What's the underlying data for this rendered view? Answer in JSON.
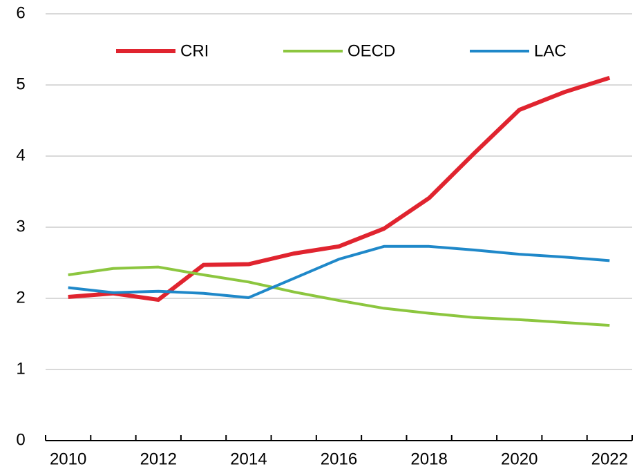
{
  "chart_data": {
    "type": "line",
    "categories": [
      "2010",
      null,
      "2012",
      null,
      "2014",
      null,
      "2016",
      null,
      "2018",
      null,
      "2020",
      null,
      "2022"
    ],
    "series": [
      {
        "name": "CRI",
        "color": "#e0242f",
        "values": [
          2.02,
          2.07,
          1.98,
          2.47,
          2.48,
          2.63,
          2.73,
          2.98,
          3.41,
          4.04,
          4.65,
          4.9,
          5.1
        ]
      },
      {
        "name": "OECD",
        "color": "#8cc63f",
        "values": [
          2.33,
          2.42,
          2.44,
          2.33,
          2.23,
          2.09,
          1.97,
          1.86,
          1.79,
          1.73,
          1.7,
          1.66,
          1.62
        ]
      },
      {
        "name": "LAC",
        "color": "#1f88c9",
        "values": [
          2.15,
          2.08,
          2.1,
          2.07,
          2.01,
          2.28,
          2.55,
          2.73,
          2.73,
          2.68,
          2.62,
          2.58,
          2.53
        ]
      }
    ],
    "ylim": [
      0,
      6
    ],
    "yticks": [
      0,
      1,
      2,
      3,
      4,
      5,
      6
    ],
    "grid": true,
    "legend": "top"
  }
}
